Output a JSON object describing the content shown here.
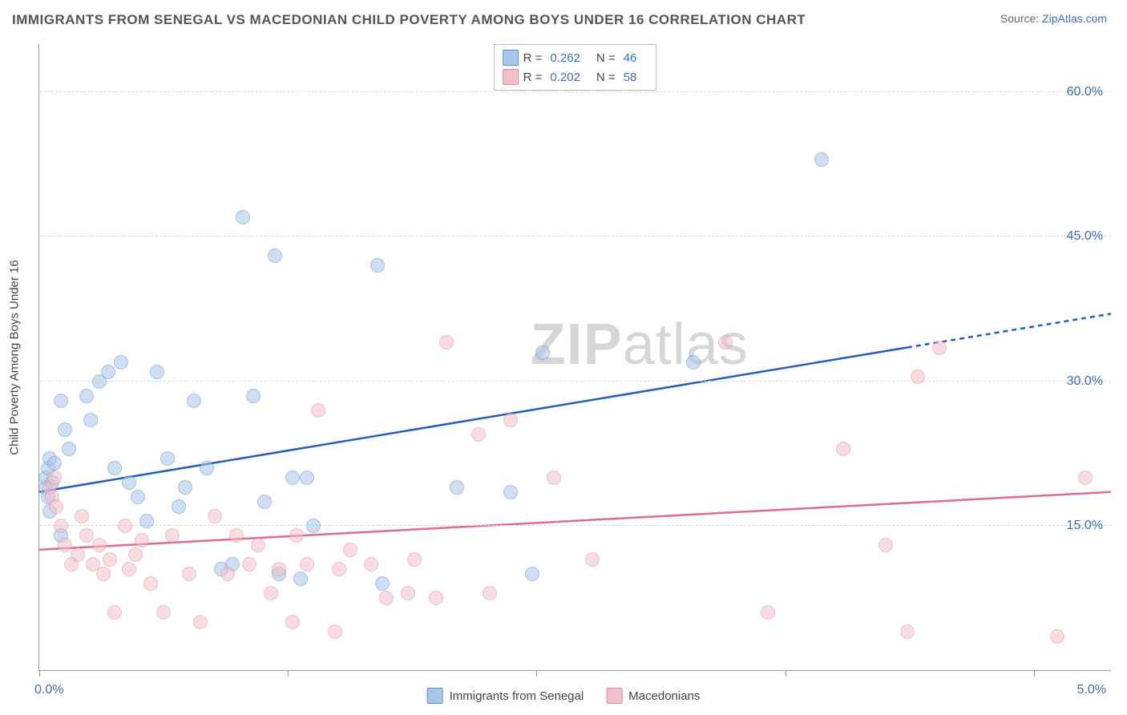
{
  "title": "IMMIGRANTS FROM SENEGAL VS MACEDONIAN CHILD POVERTY AMONG BOYS UNDER 16 CORRELATION CHART",
  "source_prefix": "Source: ",
  "source_link": "ZipAtlas.com",
  "y_axis_label": "Child Poverty Among Boys Under 16",
  "watermark_a": "ZIP",
  "watermark_b": "atlas",
  "chart": {
    "type": "scatter",
    "background_color": "#ffffff",
    "grid_color": "#d8d8d8",
    "axis_color": "#999999",
    "xlim": [
      0.0,
      5.0
    ],
    "ylim": [
      0.0,
      65.0
    ],
    "x_ticks": [
      0.0,
      1.16,
      2.32,
      3.48,
      4.64
    ],
    "x_tick_labels": {
      "first": "0.0%",
      "last": "5.0%"
    },
    "y_grid": [
      15.0,
      30.0,
      45.0,
      60.0
    ],
    "y_tick_labels": [
      "15.0%",
      "30.0%",
      "45.0%",
      "60.0%"
    ],
    "label_fontsize": 16,
    "label_color": "#3b6fb6",
    "point_radius": 9,
    "point_opacity": 0.55,
    "series": [
      {
        "name": "Immigrants from Senegal",
        "fill": "#a9c6ea",
        "stroke": "#5a8fd0",
        "trend_color": "#1f5fc4",
        "R": "0.262",
        "N": "46",
        "trend": {
          "x1": 0.0,
          "y1": 18.5,
          "x2": 4.05,
          "y2": 33.5,
          "x2_dash": 5.0,
          "y2_dash": 37.0
        },
        "points": [
          [
            0.03,
            19.0
          ],
          [
            0.03,
            20.0
          ],
          [
            0.04,
            18.0
          ],
          [
            0.04,
            21.0
          ],
          [
            0.05,
            22.0
          ],
          [
            0.06,
            19.5
          ],
          [
            0.05,
            16.5
          ],
          [
            0.07,
            21.5
          ],
          [
            0.1,
            28.0
          ],
          [
            0.12,
            25.0
          ],
          [
            0.14,
            23.0
          ],
          [
            0.22,
            28.5
          ],
          [
            0.24,
            26.0
          ],
          [
            0.28,
            30.0
          ],
          [
            0.32,
            31.0
          ],
          [
            0.35,
            21.0
          ],
          [
            0.38,
            32.0
          ],
          [
            0.42,
            19.5
          ],
          [
            0.46,
            18.0
          ],
          [
            0.5,
            15.5
          ],
          [
            0.55,
            31.0
          ],
          [
            0.6,
            22.0
          ],
          [
            0.65,
            17.0
          ],
          [
            0.68,
            19.0
          ],
          [
            0.72,
            28.0
          ],
          [
            0.78,
            21.0
          ],
          [
            0.85,
            10.5
          ],
          [
            0.9,
            11.0
          ],
          [
            0.95,
            47.0
          ],
          [
            1.0,
            28.5
          ],
          [
            1.05,
            17.5
          ],
          [
            1.1,
            43.0
          ],
          [
            1.12,
            10.0
          ],
          [
            1.18,
            20.0
          ],
          [
            1.22,
            9.5
          ],
          [
            1.25,
            20.0
          ],
          [
            1.28,
            15.0
          ],
          [
            1.58,
            42.0
          ],
          [
            1.6,
            9.0
          ],
          [
            1.95,
            19.0
          ],
          [
            2.2,
            18.5
          ],
          [
            2.3,
            10.0
          ],
          [
            2.35,
            33.0
          ],
          [
            3.05,
            32.0
          ],
          [
            3.65,
            53.0
          ],
          [
            0.1,
            14.0
          ]
        ]
      },
      {
        "name": "Macedonians",
        "fill": "#f2c0cb",
        "stroke": "#e48aa0",
        "trend_color": "#e06b8b",
        "R": "0.202",
        "N": "58",
        "trend": {
          "x1": 0.0,
          "y1": 12.5,
          "x2": 5.0,
          "y2": 18.5,
          "x2_dash": 5.0,
          "y2_dash": 18.5
        },
        "points": [
          [
            0.05,
            19.0
          ],
          [
            0.06,
            18.0
          ],
          [
            0.07,
            20.0
          ],
          [
            0.08,
            17.0
          ],
          [
            0.1,
            15.0
          ],
          [
            0.12,
            13.0
          ],
          [
            0.15,
            11.0
          ],
          [
            0.18,
            12.0
          ],
          [
            0.2,
            16.0
          ],
          [
            0.22,
            14.0
          ],
          [
            0.25,
            11.0
          ],
          [
            0.28,
            13.0
          ],
          [
            0.3,
            10.0
          ],
          [
            0.35,
            6.0
          ],
          [
            0.4,
            15.0
          ],
          [
            0.42,
            10.5
          ],
          [
            0.45,
            12.0
          ],
          [
            0.48,
            13.5
          ],
          [
            0.52,
            9.0
          ],
          [
            0.58,
            6.0
          ],
          [
            0.62,
            14.0
          ],
          [
            0.7,
            10.0
          ],
          [
            0.75,
            5.0
          ],
          [
            0.82,
            16.0
          ],
          [
            0.88,
            10.0
          ],
          [
            0.92,
            14.0
          ],
          [
            0.98,
            11.0
          ],
          [
            1.02,
            13.0
          ],
          [
            1.08,
            8.0
          ],
          [
            1.12,
            10.5
          ],
          [
            1.18,
            5.0
          ],
          [
            1.2,
            14.0
          ],
          [
            1.25,
            11.0
          ],
          [
            1.3,
            27.0
          ],
          [
            1.38,
            4.0
          ],
          [
            1.4,
            10.5
          ],
          [
            1.45,
            12.5
          ],
          [
            1.55,
            11.0
          ],
          [
            1.62,
            7.5
          ],
          [
            1.72,
            8.0
          ],
          [
            1.75,
            11.5
          ],
          [
            1.85,
            7.5
          ],
          [
            1.9,
            34.0
          ],
          [
            2.05,
            24.5
          ],
          [
            2.1,
            8.0
          ],
          [
            2.2,
            26.0
          ],
          [
            2.4,
            20.0
          ],
          [
            2.58,
            11.5
          ],
          [
            3.2,
            34.0
          ],
          [
            3.4,
            6.0
          ],
          [
            3.75,
            23.0
          ],
          [
            3.95,
            13.0
          ],
          [
            4.05,
            4.0
          ],
          [
            4.1,
            30.5
          ],
          [
            4.2,
            33.5
          ],
          [
            4.75,
            3.5
          ],
          [
            4.88,
            20.0
          ],
          [
            0.33,
            11.5
          ]
        ]
      }
    ]
  }
}
